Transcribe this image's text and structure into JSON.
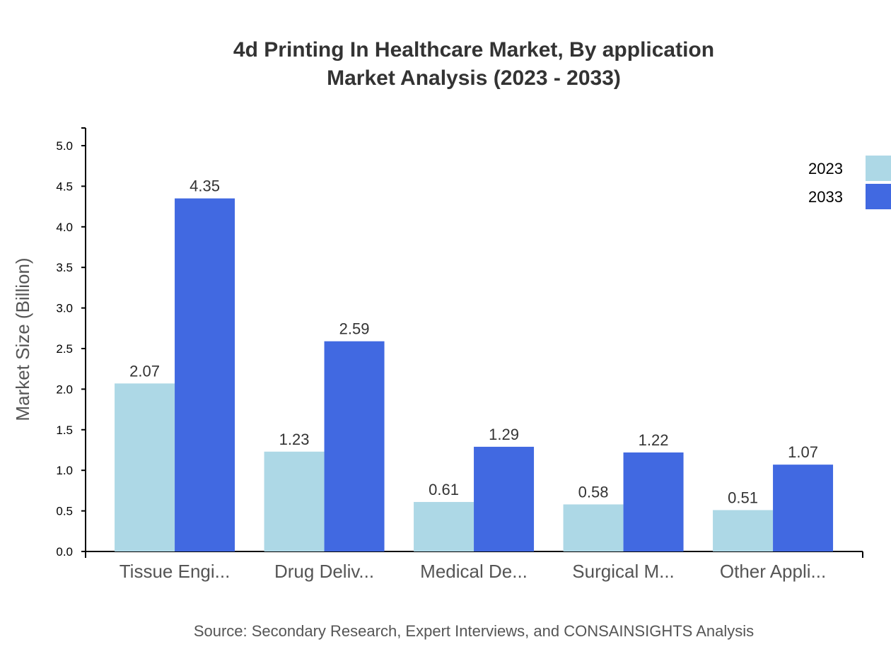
{
  "chart_data": {
    "type": "bar",
    "title": "4d Printing In Healthcare Market, By application",
    "subtitle": "Market Analysis (2023 - 2033)",
    "ylabel": "Market Size (Billion)",
    "xlabel": "",
    "ylim": [
      0,
      5.2
    ],
    "yticks": [
      "0.0",
      "0.5",
      "1.0",
      "1.5",
      "2.0",
      "2.5",
      "3.0",
      "3.5",
      "4.0",
      "4.5",
      "5.0"
    ],
    "categories": [
      "Tissue Engi...",
      "Drug Deliv...",
      "Medical De...",
      "Surgical M...",
      "Other Appli..."
    ],
    "series": [
      {
        "name": "2023",
        "color": "#add8e6",
        "values": [
          2.07,
          1.23,
          0.61,
          0.58,
          0.51
        ],
        "labels": [
          "2.07",
          "1.23",
          "0.61",
          "0.58",
          "0.51"
        ]
      },
      {
        "name": "2033",
        "color": "#4169e1",
        "values": [
          4.35,
          2.59,
          1.29,
          1.22,
          1.07
        ],
        "labels": [
          "4.35",
          "2.59",
          "1.29",
          "1.22",
          "1.07"
        ]
      }
    ],
    "grid": false,
    "legend_position": "top-right",
    "source": "Source: Secondary Research, Expert Interviews, and CONSAINSIGHTS Analysis"
  }
}
